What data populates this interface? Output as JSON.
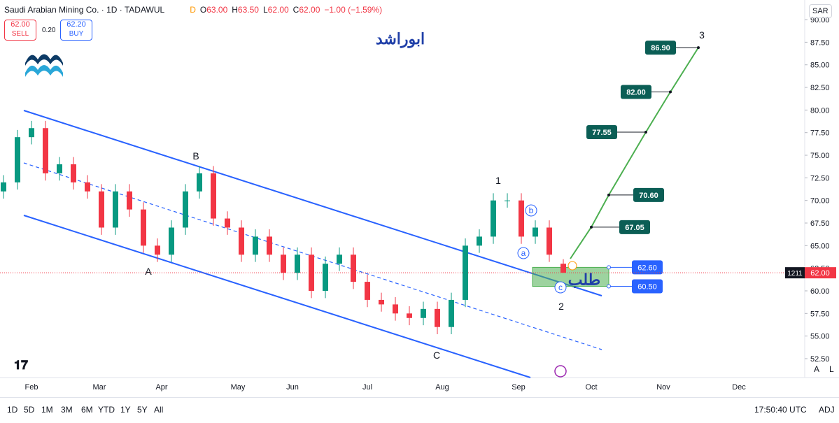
{
  "header": {
    "symbol": "Saudi Arabian Mining Co. · 1D · TADAWUL",
    "badge": "D",
    "ohlc": [
      {
        "label": "O",
        "value": "63.00"
      },
      {
        "label": "H",
        "value": "63.50"
      },
      {
        "label": "L",
        "value": "62.00"
      },
      {
        "label": "C",
        "value": "62.00"
      }
    ],
    "change": "−1.00 (−1.59%)",
    "currency": "SAR"
  },
  "trade": {
    "sell_price": "62.00",
    "sell": "SELL",
    "spread": "0.20",
    "buy_price": "62.20",
    "buy": "BUY"
  },
  "watermark": "ابوراشد",
  "chart_data": {
    "type": "candlestick",
    "open": [
      71,
      72,
      77,
      78,
      73,
      74,
      72,
      71,
      67,
      71,
      69,
      65,
      64,
      67,
      71,
      73,
      68,
      67,
      64,
      66,
      64,
      62,
      64,
      60,
      63,
      64,
      61,
      59,
      58.5,
      57.5,
      57,
      58,
      56,
      59,
      65,
      66,
      70,
      70,
      66,
      67,
      63
    ],
    "high": [
      72.8,
      77.8,
      78.8,
      78.8,
      74.8,
      74.8,
      72.8,
      71.8,
      71.8,
      71.8,
      69.8,
      65.8,
      67.8,
      71.8,
      73.8,
      73.8,
      68.8,
      67.8,
      66.8,
      66.8,
      64.8,
      64.8,
      64.8,
      63.8,
      64.8,
      64.8,
      61.8,
      59.8,
      59.3,
      58.3,
      58.8,
      58.8,
      59.8,
      65.8,
      66.8,
      70.8,
      70.8,
      70.8,
      67.8,
      67.8,
      63.5
    ],
    "low": [
      70.2,
      71.2,
      76.2,
      72.2,
      72.2,
      71.2,
      70.2,
      66.2,
      66.2,
      68.2,
      64.2,
      63.2,
      63.2,
      66.2,
      70.2,
      67.2,
      66.2,
      63.2,
      63.2,
      63.2,
      61.2,
      61.2,
      59.2,
      59.2,
      62.2,
      60.2,
      58.2,
      57.7,
      56.7,
      56.2,
      56.2,
      55.2,
      55.2,
      58.2,
      64.2,
      65.2,
      69.2,
      65.2,
      65.2,
      63.2,
      62.0
    ],
    "close": [
      72,
      77,
      78,
      73,
      74,
      72,
      71,
      67,
      71,
      69,
      65,
      64,
      67,
      71,
      73,
      68,
      67,
      64,
      66,
      64,
      62,
      64,
      60,
      63,
      64,
      61,
      59,
      58.5,
      57.5,
      57,
      58,
      56,
      59,
      65,
      66,
      70,
      70,
      66,
      67,
      64,
      62
    ],
    "up_color": "#089981",
    "down_color": "#f23645",
    "ylim": [
      50.41,
      92.17
    ],
    "yticks": [
      {
        "value": 52.5,
        "label": "52.50"
      },
      {
        "value": 55,
        "label": "55.00"
      },
      {
        "value": 57.5,
        "label": "57.50"
      },
      {
        "value": 60,
        "label": "60.00"
      },
      {
        "value": 62.5,
        "label": "62.50"
      },
      {
        "value": 65,
        "label": "65.00"
      },
      {
        "value": 67.5,
        "label": "67.50"
      },
      {
        "value": 70,
        "label": "70.00"
      },
      {
        "value": 72.5,
        "label": "72.50"
      },
      {
        "value": 75,
        "label": "75.00"
      },
      {
        "value": 77.5,
        "label": "77.50"
      },
      {
        "value": 80,
        "label": "80.00"
      },
      {
        "value": 82.5,
        "label": "82.50"
      },
      {
        "value": 85,
        "label": "85.00"
      },
      {
        "value": 87.5,
        "label": "87.50"
      },
      {
        "value": 90,
        "label": "90.00"
      }
    ],
    "xtick_labels": [
      "Feb",
      "Mar",
      "Apr",
      "May",
      "Jun",
      "Jul",
      "Aug",
      "Sep",
      "Oct",
      "Nov",
      "Dec"
    ],
    "last_price": {
      "value": 62,
      "label": "62.00",
      "countdown": "1211"
    },
    "targets": {
      "values": [
        67.05,
        70.6,
        77.55,
        82,
        86.9
      ],
      "value_labels": [
        "67.05",
        "70.60",
        "77.55",
        "82.00",
        "86.90"
      ],
      "color": "#0b5e55"
    },
    "zone": {
      "values": [
        62.6,
        60.5
      ],
      "value_labels": [
        "62.60",
        "60.50"
      ],
      "label": "طلب"
    },
    "waves": [
      "A",
      "B",
      "C",
      "1",
      "2",
      "3",
      "a",
      "b",
      "c"
    ]
  },
  "axis_buttons": [
    "A",
    "L"
  ],
  "toolbar": {
    "ranges": [
      "1D",
      "5D",
      "1M",
      "3M",
      "6M",
      "YTD",
      "1Y",
      "5Y",
      "All"
    ],
    "time": "17:50:40 UTC",
    "adj": "ADJ"
  }
}
